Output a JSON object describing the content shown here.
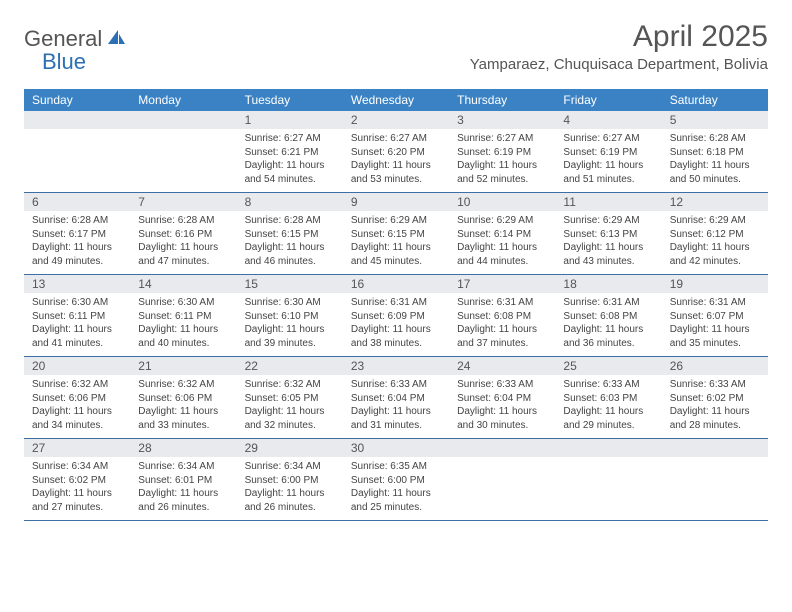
{
  "brand": {
    "text1": "General",
    "text2": "Blue",
    "icon_fill": "#2c6fb5"
  },
  "title": "April 2025",
  "location": "Yamparaez, Chuquisaca Department, Bolivia",
  "header_bg": "#3b82c4",
  "header_text_color": "#ffffff",
  "band_bg": "#e8eaed",
  "border_color": "#3b6fa5",
  "days_of_week": [
    "Sunday",
    "Monday",
    "Tuesday",
    "Wednesday",
    "Thursday",
    "Friday",
    "Saturday"
  ],
  "weeks": [
    [
      {
        "num": "",
        "sunrise": "",
        "sunset": "",
        "daylight": ""
      },
      {
        "num": "",
        "sunrise": "",
        "sunset": "",
        "daylight": ""
      },
      {
        "num": "1",
        "sunrise": "Sunrise: 6:27 AM",
        "sunset": "Sunset: 6:21 PM",
        "daylight": "Daylight: 11 hours and 54 minutes."
      },
      {
        "num": "2",
        "sunrise": "Sunrise: 6:27 AM",
        "sunset": "Sunset: 6:20 PM",
        "daylight": "Daylight: 11 hours and 53 minutes."
      },
      {
        "num": "3",
        "sunrise": "Sunrise: 6:27 AM",
        "sunset": "Sunset: 6:19 PM",
        "daylight": "Daylight: 11 hours and 52 minutes."
      },
      {
        "num": "4",
        "sunrise": "Sunrise: 6:27 AM",
        "sunset": "Sunset: 6:19 PM",
        "daylight": "Daylight: 11 hours and 51 minutes."
      },
      {
        "num": "5",
        "sunrise": "Sunrise: 6:28 AM",
        "sunset": "Sunset: 6:18 PM",
        "daylight": "Daylight: 11 hours and 50 minutes."
      }
    ],
    [
      {
        "num": "6",
        "sunrise": "Sunrise: 6:28 AM",
        "sunset": "Sunset: 6:17 PM",
        "daylight": "Daylight: 11 hours and 49 minutes."
      },
      {
        "num": "7",
        "sunrise": "Sunrise: 6:28 AM",
        "sunset": "Sunset: 6:16 PM",
        "daylight": "Daylight: 11 hours and 47 minutes."
      },
      {
        "num": "8",
        "sunrise": "Sunrise: 6:28 AM",
        "sunset": "Sunset: 6:15 PM",
        "daylight": "Daylight: 11 hours and 46 minutes."
      },
      {
        "num": "9",
        "sunrise": "Sunrise: 6:29 AM",
        "sunset": "Sunset: 6:15 PM",
        "daylight": "Daylight: 11 hours and 45 minutes."
      },
      {
        "num": "10",
        "sunrise": "Sunrise: 6:29 AM",
        "sunset": "Sunset: 6:14 PM",
        "daylight": "Daylight: 11 hours and 44 minutes."
      },
      {
        "num": "11",
        "sunrise": "Sunrise: 6:29 AM",
        "sunset": "Sunset: 6:13 PM",
        "daylight": "Daylight: 11 hours and 43 minutes."
      },
      {
        "num": "12",
        "sunrise": "Sunrise: 6:29 AM",
        "sunset": "Sunset: 6:12 PM",
        "daylight": "Daylight: 11 hours and 42 minutes."
      }
    ],
    [
      {
        "num": "13",
        "sunrise": "Sunrise: 6:30 AM",
        "sunset": "Sunset: 6:11 PM",
        "daylight": "Daylight: 11 hours and 41 minutes."
      },
      {
        "num": "14",
        "sunrise": "Sunrise: 6:30 AM",
        "sunset": "Sunset: 6:11 PM",
        "daylight": "Daylight: 11 hours and 40 minutes."
      },
      {
        "num": "15",
        "sunrise": "Sunrise: 6:30 AM",
        "sunset": "Sunset: 6:10 PM",
        "daylight": "Daylight: 11 hours and 39 minutes."
      },
      {
        "num": "16",
        "sunrise": "Sunrise: 6:31 AM",
        "sunset": "Sunset: 6:09 PM",
        "daylight": "Daylight: 11 hours and 38 minutes."
      },
      {
        "num": "17",
        "sunrise": "Sunrise: 6:31 AM",
        "sunset": "Sunset: 6:08 PM",
        "daylight": "Daylight: 11 hours and 37 minutes."
      },
      {
        "num": "18",
        "sunrise": "Sunrise: 6:31 AM",
        "sunset": "Sunset: 6:08 PM",
        "daylight": "Daylight: 11 hours and 36 minutes."
      },
      {
        "num": "19",
        "sunrise": "Sunrise: 6:31 AM",
        "sunset": "Sunset: 6:07 PM",
        "daylight": "Daylight: 11 hours and 35 minutes."
      }
    ],
    [
      {
        "num": "20",
        "sunrise": "Sunrise: 6:32 AM",
        "sunset": "Sunset: 6:06 PM",
        "daylight": "Daylight: 11 hours and 34 minutes."
      },
      {
        "num": "21",
        "sunrise": "Sunrise: 6:32 AM",
        "sunset": "Sunset: 6:06 PM",
        "daylight": "Daylight: 11 hours and 33 minutes."
      },
      {
        "num": "22",
        "sunrise": "Sunrise: 6:32 AM",
        "sunset": "Sunset: 6:05 PM",
        "daylight": "Daylight: 11 hours and 32 minutes."
      },
      {
        "num": "23",
        "sunrise": "Sunrise: 6:33 AM",
        "sunset": "Sunset: 6:04 PM",
        "daylight": "Daylight: 11 hours and 31 minutes."
      },
      {
        "num": "24",
        "sunrise": "Sunrise: 6:33 AM",
        "sunset": "Sunset: 6:04 PM",
        "daylight": "Daylight: 11 hours and 30 minutes."
      },
      {
        "num": "25",
        "sunrise": "Sunrise: 6:33 AM",
        "sunset": "Sunset: 6:03 PM",
        "daylight": "Daylight: 11 hours and 29 minutes."
      },
      {
        "num": "26",
        "sunrise": "Sunrise: 6:33 AM",
        "sunset": "Sunset: 6:02 PM",
        "daylight": "Daylight: 11 hours and 28 minutes."
      }
    ],
    [
      {
        "num": "27",
        "sunrise": "Sunrise: 6:34 AM",
        "sunset": "Sunset: 6:02 PM",
        "daylight": "Daylight: 11 hours and 27 minutes."
      },
      {
        "num": "28",
        "sunrise": "Sunrise: 6:34 AM",
        "sunset": "Sunset: 6:01 PM",
        "daylight": "Daylight: 11 hours and 26 minutes."
      },
      {
        "num": "29",
        "sunrise": "Sunrise: 6:34 AM",
        "sunset": "Sunset: 6:00 PM",
        "daylight": "Daylight: 11 hours and 26 minutes."
      },
      {
        "num": "30",
        "sunrise": "Sunrise: 6:35 AM",
        "sunset": "Sunset: 6:00 PM",
        "daylight": "Daylight: 11 hours and 25 minutes."
      },
      {
        "num": "",
        "sunrise": "",
        "sunset": "",
        "daylight": ""
      },
      {
        "num": "",
        "sunrise": "",
        "sunset": "",
        "daylight": ""
      },
      {
        "num": "",
        "sunrise": "",
        "sunset": "",
        "daylight": ""
      }
    ]
  ]
}
